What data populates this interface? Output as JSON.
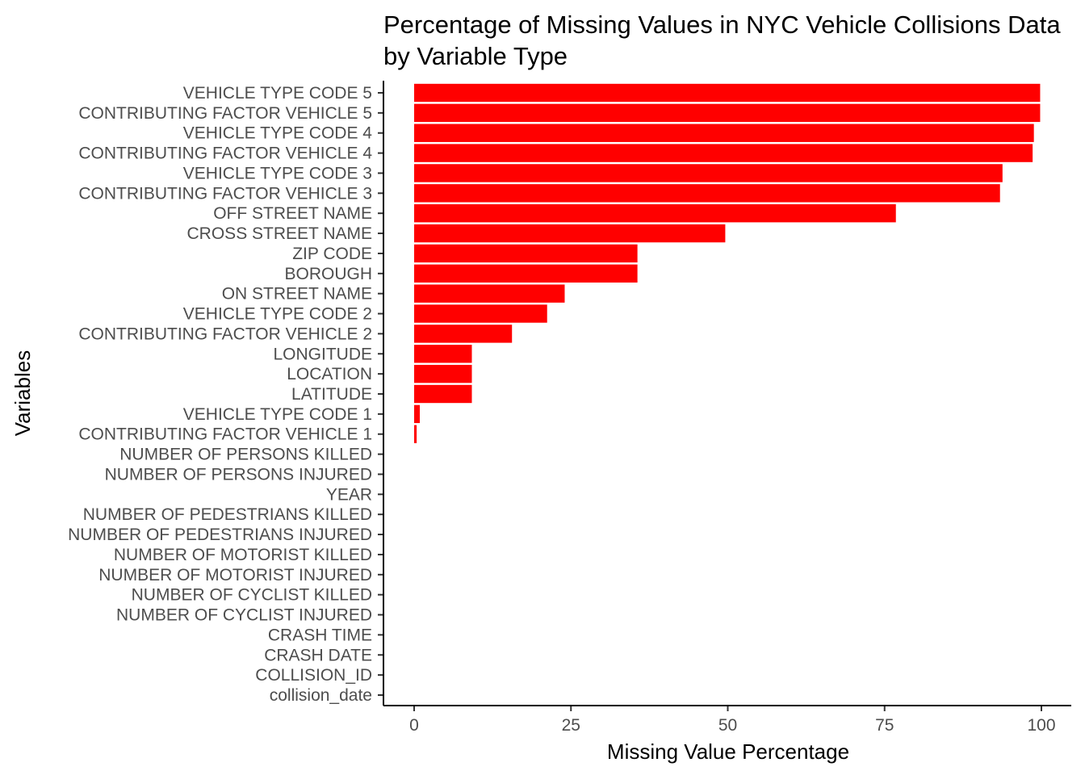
{
  "chart_data": {
    "type": "bar",
    "orientation": "horizontal",
    "title_lines": [
      "Percentage of Missing Values in NYC Vehicle Collisions Data",
      "by Variable Type"
    ],
    "xlabel": "Missing Value Percentage",
    "ylabel": "Variables",
    "xlim": [
      0,
      100
    ],
    "x_ticks": [
      0,
      25,
      50,
      75,
      100
    ],
    "bar_color": "#ff0000",
    "grid": false,
    "legend": "none",
    "categories": [
      "VEHICLE TYPE CODE 5",
      "CONTRIBUTING FACTOR VEHICLE 5",
      "VEHICLE TYPE CODE 4",
      "CONTRIBUTING FACTOR VEHICLE 4",
      "VEHICLE TYPE CODE 3",
      "CONTRIBUTING FACTOR VEHICLE 3",
      "OFF STREET NAME",
      "CROSS STREET NAME",
      "ZIP CODE",
      "BOROUGH",
      "ON STREET NAME",
      "VEHICLE TYPE CODE 2",
      "CONTRIBUTING FACTOR VEHICLE 2",
      "LONGITUDE",
      "LOCATION",
      "LATITUDE",
      "VEHICLE TYPE CODE 1",
      "CONTRIBUTING FACTOR VEHICLE 1",
      "NUMBER OF PERSONS KILLED",
      "NUMBER OF PERSONS INJURED",
      "YEAR",
      "NUMBER OF PEDESTRIANS KILLED",
      "NUMBER OF PEDESTRIANS INJURED",
      "NUMBER OF MOTORIST KILLED",
      "NUMBER OF MOTORIST INJURED",
      "NUMBER OF CYCLIST KILLED",
      "NUMBER OF CYCLIST INJURED",
      "CRASH TIME",
      "CRASH DATE",
      "COLLISION_ID",
      "collision_date"
    ],
    "values": [
      99.8,
      99.8,
      98.8,
      98.6,
      93.8,
      93.4,
      76.8,
      49.6,
      35.6,
      35.6,
      24.0,
      21.2,
      15.6,
      9.2,
      9.2,
      9.2,
      0.9,
      0.4,
      0,
      0,
      0,
      0,
      0,
      0,
      0,
      0,
      0,
      0,
      0,
      0,
      0
    ]
  }
}
